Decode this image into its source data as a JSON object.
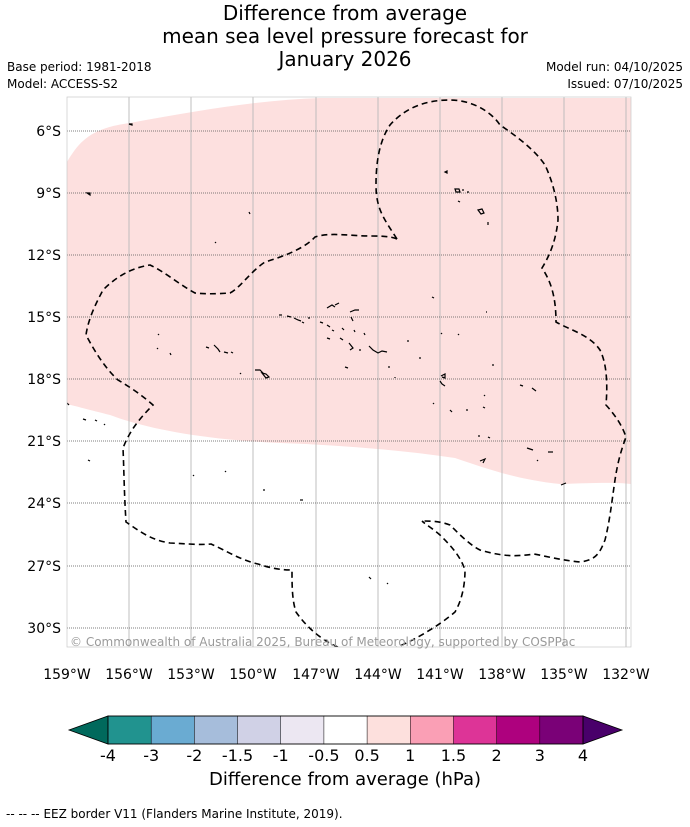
{
  "title": {
    "line1": "Difference from average",
    "line2": "mean sea level pressure forecast for",
    "line3": "January 2026"
  },
  "meta": {
    "base_period": "Base period: 1981-2018",
    "model": "Model: ACCESS-S2",
    "model_run": "Model run: 04/10/2025",
    "issued": "Issued: 07/10/2025"
  },
  "map": {
    "lat_labels": [
      "6°S",
      "9°S",
      "12°S",
      "15°S",
      "18°S",
      "21°S",
      "24°S",
      "27°S",
      "30°S"
    ],
    "lon_labels": [
      "159°W",
      "156°W",
      "153°W",
      "150°W",
      "147°W",
      "144°W",
      "141°W",
      "138°W",
      "135°W",
      "132°W"
    ],
    "copyright": "© Commonwealth of Australia 2025, Bureau of Meteorology, supported by COSPPac",
    "anomaly_region_category": "0.5 to 1",
    "anomaly_region_color": "#fde0df",
    "land_color": "#000000"
  },
  "colorbar": {
    "colors": [
      "#00695c",
      "#21938f",
      "#6aabd2",
      "#a6bddb",
      "#d0d1e6",
      "#ece7f2",
      "#ffffff",
      "#fde0dd",
      "#fa9fb5",
      "#dd3497",
      "#ae017e",
      "#7a0177",
      "#49006a"
    ],
    "tick_labels": [
      "-4",
      "-3",
      "-2",
      "-1.5",
      "-1",
      "-0.5",
      "0.5",
      "1",
      "1.5",
      "2",
      "3",
      "4"
    ],
    "label": "Difference from average (hPa)"
  },
  "footer": {
    "legend_symbol": "--  --  --",
    "legend_text": "EEZ border V11 (Flanders Marine Institute, 2019)."
  }
}
